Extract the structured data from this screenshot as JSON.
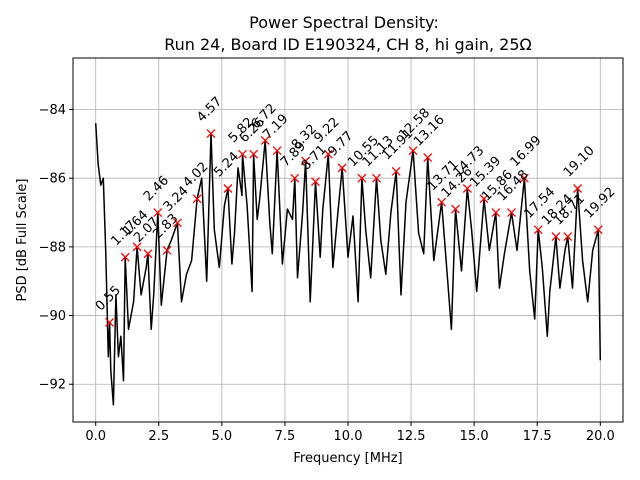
{
  "chart_data": {
    "type": "line",
    "title": "Power Spectral Density:",
    "subtitle": "Run 24, Board ID E190324, CH 8, hi gain, 25Ω",
    "xlabel": "Frequency [MHz]",
    "ylabel": "PSD [dB Full Scale]",
    "xlim": [
      -0.9,
      20.9
    ],
    "ylim": [
      -93.1,
      -82.5
    ],
    "xticks": [
      0.0,
      2.5,
      5.0,
      7.5,
      10.0,
      12.5,
      15.0,
      17.5,
      20.0
    ],
    "xtick_labels": [
      "0.0",
      "2.5",
      "5.0",
      "7.5",
      "10.0",
      "12.5",
      "15.0",
      "17.5",
      "20.0"
    ],
    "yticks": [
      -92,
      -90,
      -88,
      -86,
      -84
    ],
    "ytick_labels": [
      "−92",
      "−90",
      "−88",
      "−86",
      "−84"
    ],
    "grid": true,
    "series": [
      {
        "name": "PSD",
        "color": "#000000",
        "x": [
          0.0,
          0.1,
          0.2,
          0.3,
          0.4,
          0.5,
          0.55,
          0.6,
          0.7,
          0.8,
          0.9,
          1.0,
          1.1,
          1.17,
          1.3,
          1.5,
          1.64,
          1.8,
          2.0,
          2.07,
          2.2,
          2.3,
          2.46,
          2.6,
          2.7,
          2.83,
          3.0,
          3.24,
          3.4,
          3.6,
          3.8,
          4.02,
          4.2,
          4.4,
          4.57,
          4.7,
          4.9,
          5.1,
          5.24,
          5.4,
          5.5,
          5.64,
          5.8,
          5.82,
          6.0,
          6.2,
          6.26,
          6.4,
          6.5,
          6.72,
          6.9,
          7.0,
          7.19,
          7.4,
          7.6,
          7.8,
          7.89,
          8.0,
          8.2,
          8.32,
          8.5,
          8.71,
          8.9,
          9.0,
          9.22,
          9.4,
          9.6,
          9.77,
          10.0,
          10.2,
          10.4,
          10.55,
          10.7,
          10.9,
          11.13,
          11.3,
          11.5,
          11.7,
          11.91,
          12.1,
          12.3,
          12.58,
          12.8,
          13.0,
          13.16,
          13.4,
          13.71,
          13.9,
          14.1,
          14.26,
          14.5,
          14.73,
          14.9,
          15.1,
          15.39,
          15.6,
          15.86,
          16.0,
          16.2,
          16.48,
          16.7,
          16.99,
          17.2,
          17.4,
          17.54,
          17.7,
          17.9,
          18.0,
          18.24,
          18.4,
          18.6,
          18.71,
          18.9,
          19.1,
          19.3,
          19.5,
          19.7,
          19.92,
          20.0
        ],
        "values": [
          -84.4,
          -85.6,
          -86.2,
          -86.0,
          -88.2,
          -91.2,
          -90.2,
          -91.6,
          -92.6,
          -89.4,
          -91.2,
          -90.6,
          -91.9,
          -88.3,
          -90.4,
          -89.6,
          -88.0,
          -89.4,
          -88.6,
          -88.2,
          -90.4,
          -89.4,
          -87.0,
          -89.7,
          -89.0,
          -88.1,
          -87.8,
          -87.3,
          -89.6,
          -88.8,
          -88.4,
          -86.6,
          -86.0,
          -89.0,
          -84.7,
          -87.5,
          -88.6,
          -86.8,
          -86.3,
          -88.5,
          -87.6,
          -85.7,
          -86.5,
          -85.3,
          -86.8,
          -89.3,
          -85.3,
          -87.2,
          -86.6,
          -84.9,
          -87.3,
          -88.2,
          -85.2,
          -88.5,
          -86.9,
          -87.2,
          -86.0,
          -88.9,
          -87.0,
          -85.5,
          -89.6,
          -86.1,
          -88.3,
          -86.9,
          -85.3,
          -88.6,
          -87.0,
          -85.7,
          -88.3,
          -87.1,
          -89.6,
          -86.0,
          -87.5,
          -88.9,
          -86.0,
          -87.8,
          -88.8,
          -87.0,
          -85.8,
          -89.4,
          -86.7,
          -85.2,
          -87.6,
          -88.2,
          -85.4,
          -88.4,
          -86.7,
          -88.5,
          -90.4,
          -86.9,
          -88.7,
          -86.3,
          -87.5,
          -89.3,
          -86.6,
          -88.1,
          -87.0,
          -89.2,
          -88.2,
          -87.0,
          -88.1,
          -86.0,
          -88.7,
          -90.1,
          -87.5,
          -88.6,
          -90.6,
          -89.3,
          -87.7,
          -89.2,
          -88.1,
          -87.7,
          -89.2,
          -86.3,
          -88.4,
          -89.6,
          -88.1,
          -87.5,
          -91.3
        ]
      }
    ],
    "peaks": {
      "marker_color": "#ff0000",
      "x": [
        0.55,
        1.17,
        1.64,
        2.07,
        2.46,
        2.83,
        3.24,
        4.02,
        4.57,
        5.24,
        5.82,
        6.26,
        6.72,
        7.19,
        7.89,
        8.32,
        8.71,
        9.22,
        9.77,
        10.55,
        11.13,
        11.91,
        12.58,
        13.16,
        13.71,
        14.26,
        14.73,
        15.39,
        15.86,
        16.48,
        16.99,
        17.54,
        18.24,
        18.71,
        19.1,
        19.92
      ],
      "y": [
        -90.2,
        -88.3,
        -88.0,
        -88.2,
        -87.0,
        -88.1,
        -87.3,
        -86.6,
        -84.7,
        -86.3,
        -85.3,
        -85.3,
        -84.9,
        -85.2,
        -86.0,
        -85.5,
        -86.1,
        -85.3,
        -85.7,
        -86.0,
        -86.0,
        -85.8,
        -85.2,
        -85.4,
        -86.7,
        -86.9,
        -86.3,
        -86.6,
        -87.0,
        -87.0,
        -86.0,
        -87.5,
        -87.7,
        -87.7,
        -86.3,
        -87.5
      ],
      "labels": [
        "0.55",
        "1.17",
        "1.64",
        "2.07",
        "2.46",
        "2.83",
        "3.24",
        "4.02",
        "4.57",
        "5.24",
        "5.82",
        "6.26",
        "6.72",
        "7.19",
        "7.89",
        "8.32",
        "8.71",
        "9.22",
        "9.77",
        "10.55",
        "11.13",
        "11.91",
        "12.58",
        "13.16",
        "13.71",
        "14.26",
        "14.73",
        "15.39",
        "15.86",
        "16.48",
        "16.99",
        "17.54",
        "18.24",
        "18.71",
        "19.10",
        "19.92"
      ]
    }
  }
}
